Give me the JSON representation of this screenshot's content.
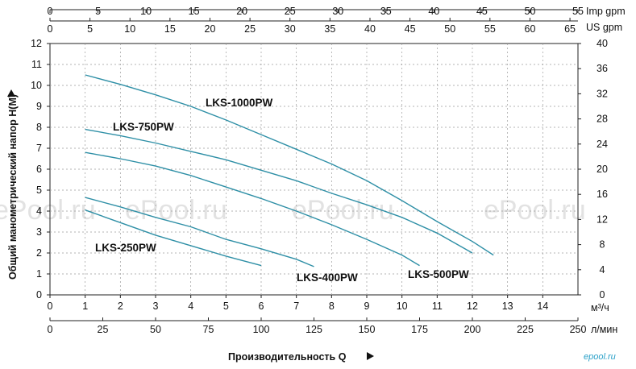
{
  "chart_data": {
    "type": "line",
    "x": {
      "unit": "м³/ч",
      "range": [
        0,
        15
      ],
      "ticks": [
        "0",
        "1",
        "2",
        "3",
        "4",
        "5",
        "6",
        "7",
        "8",
        "9",
        "10",
        "11",
        "12",
        "13",
        "14"
      ]
    },
    "x_lpm": {
      "unit": "л/мин",
      "range": [
        0,
        250
      ],
      "ticks": [
        "0",
        "25",
        "50",
        "75",
        "100",
        "125",
        "150",
        "175",
        "200",
        "225",
        "250"
      ]
    },
    "x_us_gpm": {
      "unit": "US gpm",
      "range": [
        0,
        66
      ],
      "ticks": [
        "0",
        "5",
        "10",
        "15",
        "20",
        "25",
        "30",
        "35",
        "40",
        "45",
        "50",
        "55",
        "60",
        "65"
      ]
    },
    "x_imp_gpm": {
      "unit": "Imp gpm",
      "range": [
        0,
        55
      ],
      "ticks": [
        "0",
        "5",
        "10",
        "15",
        "20",
        "25",
        "30",
        "35",
        "40",
        "45",
        "50",
        "55"
      ]
    },
    "y": {
      "label": "Общий манометрический напор H(M)",
      "range": [
        0,
        12
      ],
      "ticks": [
        "0",
        "1",
        "2",
        "3",
        "4",
        "5",
        "6",
        "7",
        "8",
        "9",
        "10",
        "11",
        "12"
      ]
    },
    "y_ft": {
      "range": [
        0,
        40
      ],
      "ticks": [
        "0",
        "4",
        "8",
        "12",
        "16",
        "20",
        "24",
        "28",
        "32",
        "36",
        "40"
      ]
    },
    "xlabel": "Производительность Q",
    "series": [
      {
        "name": "LKS-250PW",
        "points": [
          [
            1.0,
            4.05
          ],
          [
            2.0,
            3.45
          ],
          [
            3.0,
            2.85
          ],
          [
            4.0,
            2.35
          ],
          [
            5.0,
            1.85
          ],
          [
            6.0,
            1.4
          ]
        ]
      },
      {
        "name": "LKS-400PW",
        "points": [
          [
            1.0,
            4.65
          ],
          [
            2.0,
            4.2
          ],
          [
            3.0,
            3.7
          ],
          [
            4.0,
            3.25
          ],
          [
            5.0,
            2.65
          ],
          [
            6.0,
            2.2
          ],
          [
            7.0,
            1.7
          ],
          [
            7.5,
            1.35
          ]
        ]
      },
      {
        "name": "LKS-500PW",
        "points": [
          [
            1.0,
            6.8
          ],
          [
            2.0,
            6.5
          ],
          [
            3.0,
            6.15
          ],
          [
            4.0,
            5.7
          ],
          [
            5.0,
            5.15
          ],
          [
            6.0,
            4.6
          ],
          [
            7.0,
            4.0
          ],
          [
            8.0,
            3.35
          ],
          [
            9.0,
            2.65
          ],
          [
            10.0,
            1.9
          ],
          [
            10.5,
            1.4
          ]
        ]
      },
      {
        "name": "LKS-750PW",
        "points": [
          [
            1.0,
            7.9
          ],
          [
            2.0,
            7.6
          ],
          [
            3.0,
            7.25
          ],
          [
            4.0,
            6.85
          ],
          [
            5.0,
            6.45
          ],
          [
            6.0,
            5.95
          ],
          [
            7.0,
            5.45
          ],
          [
            8.0,
            4.85
          ],
          [
            9.0,
            4.3
          ],
          [
            10.0,
            3.7
          ],
          [
            11.0,
            2.95
          ],
          [
            12.0,
            2.0
          ]
        ]
      },
      {
        "name": "LKS-1000PW",
        "points": [
          [
            1.0,
            10.5
          ],
          [
            2.0,
            10.05
          ],
          [
            3.0,
            9.55
          ],
          [
            4.0,
            9.0
          ],
          [
            5.0,
            8.35
          ],
          [
            6.0,
            7.65
          ],
          [
            7.0,
            6.95
          ],
          [
            8.0,
            6.25
          ],
          [
            9.0,
            5.45
          ],
          [
            10.0,
            4.5
          ],
          [
            11.0,
            3.5
          ],
          [
            12.0,
            2.55
          ],
          [
            12.6,
            1.9
          ]
        ]
      }
    ],
    "grid": true,
    "line_color": "#2e8fa6",
    "watermark": "ePool.ru",
    "brand": "epool.ru"
  }
}
